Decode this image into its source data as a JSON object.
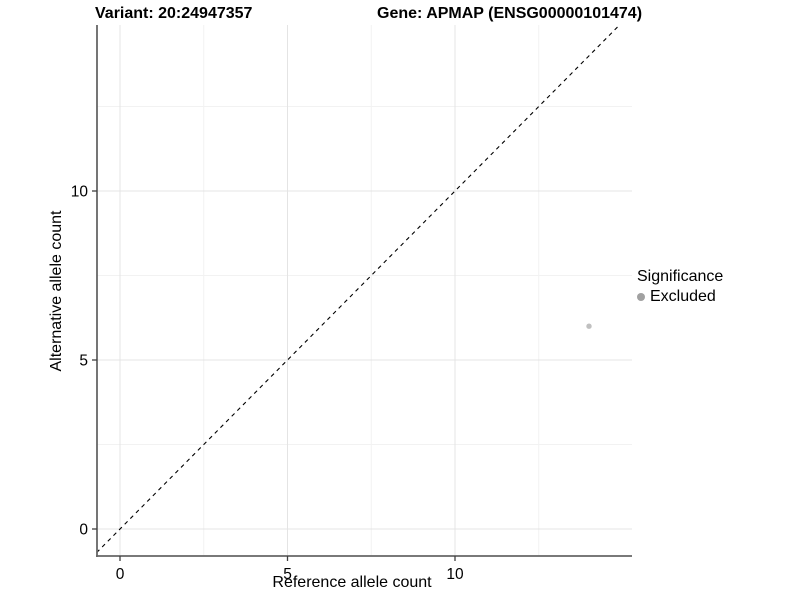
{
  "titles": {
    "variant": "Variant: 20:24947357",
    "gene": "Gene: APMAP (ENSG00000101474)"
  },
  "chart_data": {
    "type": "scatter",
    "xlabel": "Reference allele count",
    "ylabel": "Alternative allele count",
    "x_ticks": [
      0,
      5,
      10
    ],
    "y_ticks": [
      0,
      5,
      10
    ],
    "x_minor_ticks": [
      2.5,
      7.5,
      12.5
    ],
    "y_minor_ticks": [
      2.5,
      7.5,
      12.5
    ],
    "xlim": [
      -0.7,
      15.3
    ],
    "ylim": [
      -0.8,
      14.9
    ],
    "grid": true,
    "points": [
      {
        "x": 14,
        "y": 6,
        "series": "Excluded"
      }
    ],
    "identity_line": {
      "type": "dashed",
      "slope": 1,
      "intercept": 0
    },
    "legend": {
      "title": "Significance",
      "position": "right",
      "items": [
        {
          "label": "Excluded"
        }
      ]
    }
  },
  "colors": {
    "point": "#c0c0c0",
    "legend_dot": "#a1a1a1",
    "grid_major": "#e4e4e4",
    "grid_minor": "#f2f2f2",
    "axis_line": "#666666",
    "tick": "#404040",
    "dashed_line": "#000000",
    "text": "#000000"
  }
}
